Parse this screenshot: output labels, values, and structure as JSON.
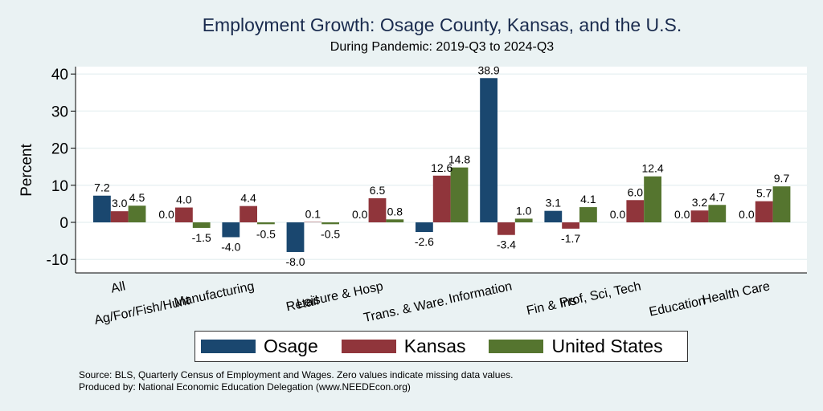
{
  "chart_data": {
    "type": "bar",
    "title": "Employment Growth: Osage County, Kansas, and the U.S.",
    "subtitle": "During Pandemic: 2019-Q3 to 2024-Q3",
    "xlabel": "",
    "ylabel": "Percent",
    "ylim": [
      -14,
      44
    ],
    "yticks": [
      -10,
      0,
      10,
      20,
      30,
      40
    ],
    "grid": true,
    "legend_position": "bottom",
    "categories": [
      "All",
      "Ag/For/Fish/Hunt",
      "Manufacturing",
      "Retail",
      "Leisure & Hosp",
      "Trans. & Ware.",
      "Information",
      "Fin & Ins",
      "Prof, Sci, Tech",
      "Education",
      "Health Care"
    ],
    "series": [
      {
        "name": "Osage",
        "color": "#1a476f",
        "values": [
          7.2,
          0.0,
          -4.0,
          -8.0,
          0.0,
          -2.6,
          38.9,
          3.1,
          0.0,
          0.0,
          0.0
        ]
      },
      {
        "name": "Kansas",
        "color": "#90353b",
        "values": [
          3.0,
          4.0,
          4.4,
          0.1,
          6.5,
          12.6,
          -3.4,
          -1.7,
          6.0,
          3.2,
          5.7
        ]
      },
      {
        "name": "United States",
        "color": "#55752f",
        "values": [
          4.5,
          -1.5,
          -0.5,
          -0.5,
          0.8,
          14.8,
          1.0,
          4.1,
          12.4,
          4.7,
          9.7
        ]
      }
    ]
  },
  "notes": {
    "source": "Source: BLS, Quarterly Census of Employment and Wages. Zero values indicate missing data values.",
    "produced_by": "Produced by: National Economic Education Delegation (www.NEEDEcon.org)"
  }
}
